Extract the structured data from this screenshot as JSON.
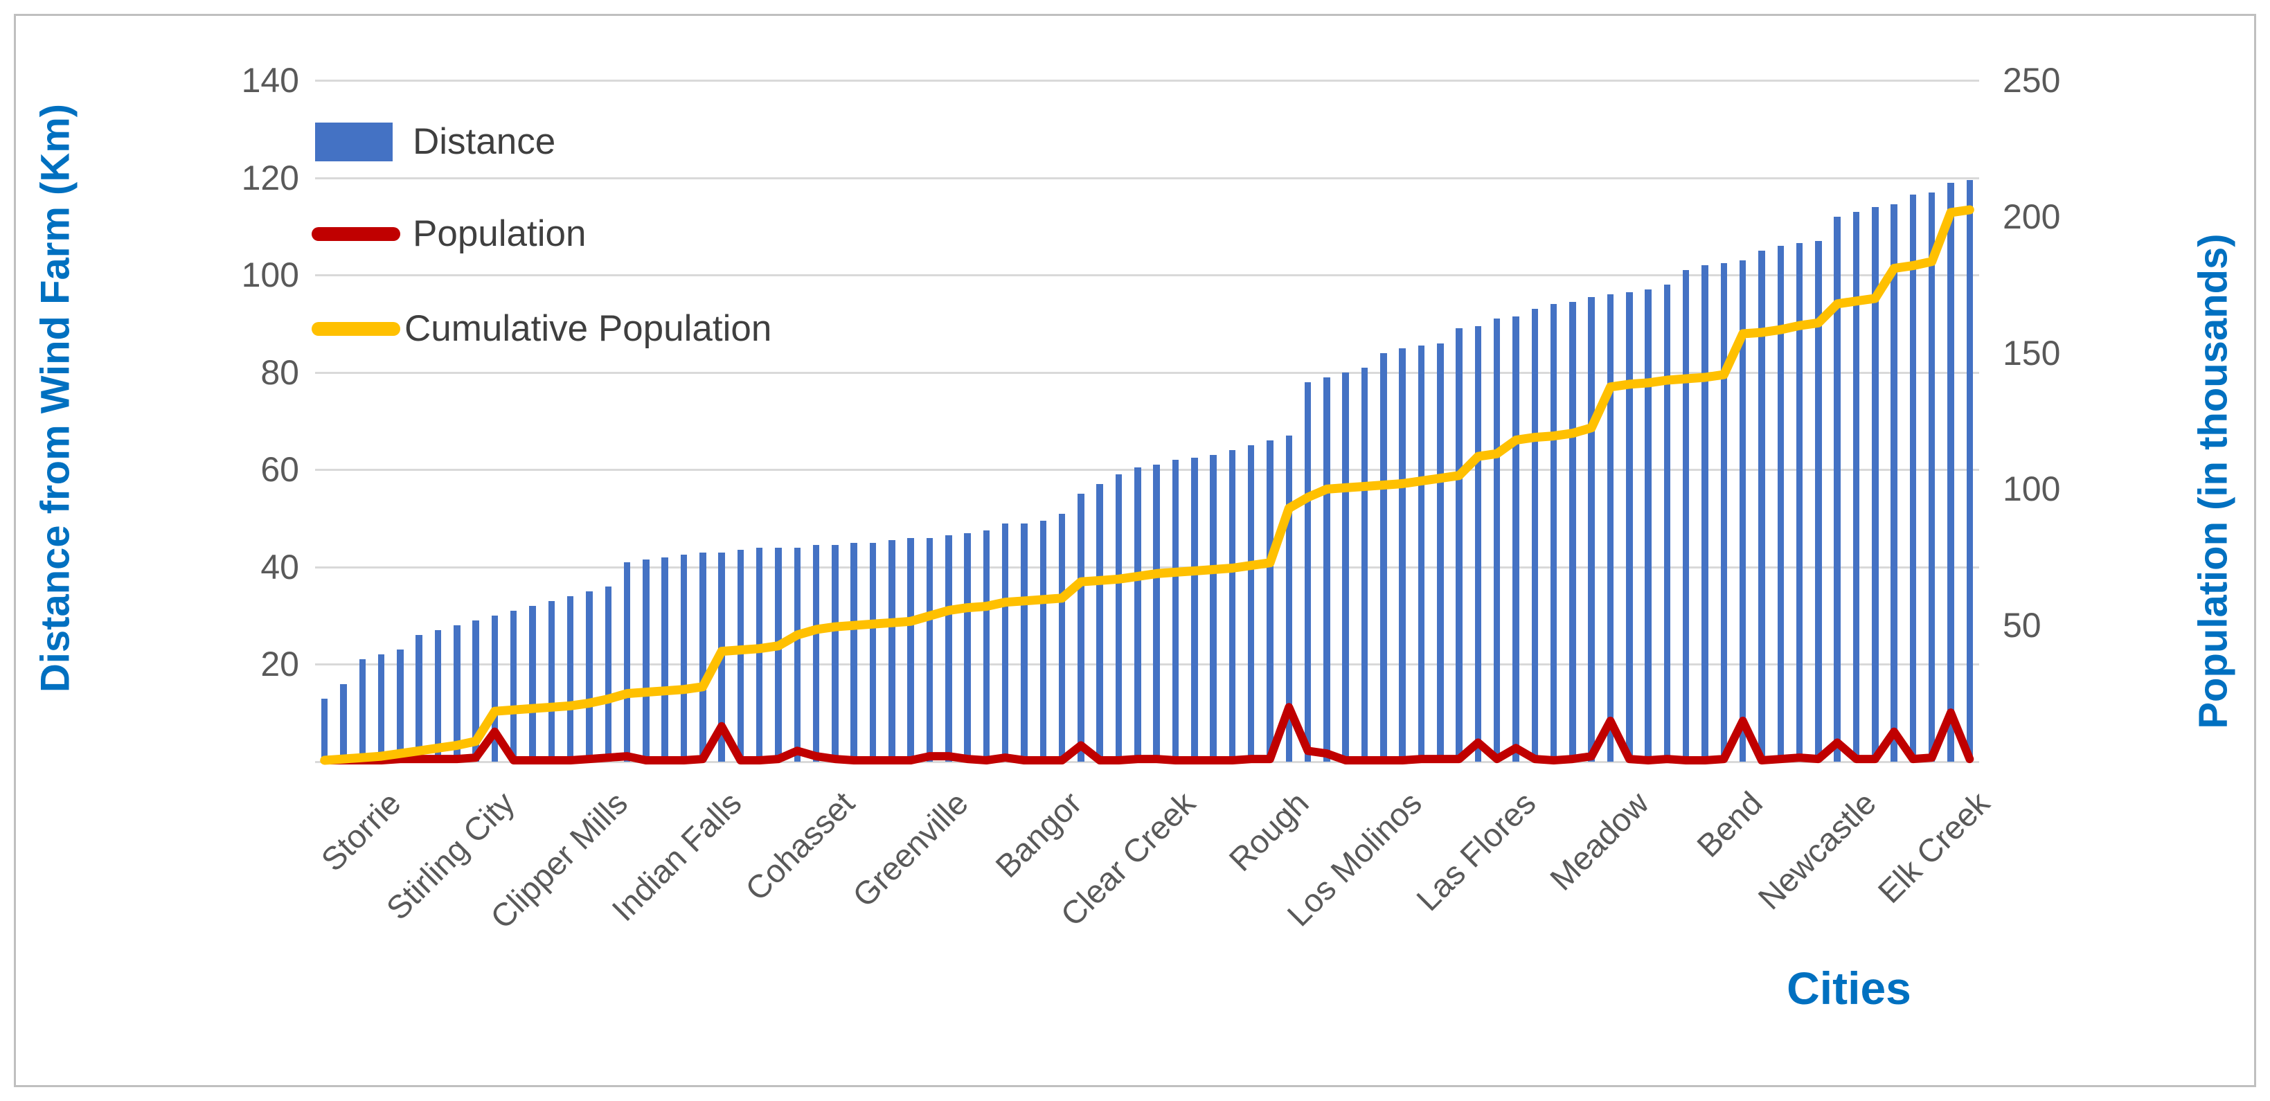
{
  "chart_data": {
    "type": "combo",
    "n_categories": 88,
    "grid": {
      "horizontal": true,
      "color": "#d9d9d9"
    },
    "x_axis": {
      "title": "Cities",
      "visible_labels": [
        "Storrie",
        "Stirling City",
        "Clipper Mills",
        "Indian Falls",
        "Cohasset",
        "Greenville",
        "Bangor",
        "Clear Creek",
        "Rough",
        "Los Molinos",
        "Las Flores",
        "Meadow",
        "Bend",
        "Newcastle",
        "Elk Creek"
      ],
      "visible_label_positions": [
        4,
        10,
        16,
        22,
        28,
        34,
        40,
        46,
        52,
        58,
        64,
        70,
        76,
        82,
        88
      ],
      "label_rotation_deg": 45
    },
    "y_axis_left": {
      "title": "Distance from Wind Farm (Km)",
      "min": 0,
      "max": 140,
      "tick_interval": 20,
      "ticks": [
        20,
        40,
        60,
        80,
        100,
        120,
        140
      ],
      "title_color": "#0070C0",
      "tick_color": "#595959"
    },
    "y_axis_right": {
      "title": "Population (in thousands)",
      "min": 0,
      "max": 250,
      "tick_interval": 50,
      "ticks": [
        50,
        100,
        150,
        200,
        250
      ],
      "title_color": "#0070C0",
      "tick_color": "#595959"
    },
    "legend": {
      "position": "top-left",
      "entries": [
        {
          "label": "Distance",
          "color": "#4472C4",
          "swatch": "bar"
        },
        {
          "label": "Population",
          "color": "#C00000",
          "swatch": "line"
        },
        {
          "label": "Cumulative Population",
          "color": "#FFC000",
          "swatch": "line"
        }
      ]
    },
    "series": [
      {
        "name": "Distance",
        "type": "bar",
        "axis": "left",
        "color": "#4472C4",
        "values": [
          13,
          16,
          21,
          22,
          23,
          26,
          27,
          28,
          29,
          30,
          31,
          32,
          33,
          34,
          35,
          36,
          41,
          41.5,
          42,
          42.5,
          43,
          43,
          43.5,
          44,
          44,
          44,
          44.5,
          44.5,
          45,
          45,
          45.5,
          46,
          46,
          46.5,
          47,
          47.5,
          49,
          49,
          49.5,
          51,
          55,
          57,
          59,
          60.5,
          61,
          62,
          62.5,
          63,
          64,
          65,
          66,
          67,
          78,
          79,
          80,
          81,
          84,
          85,
          85.5,
          86,
          89,
          89.5,
          91,
          91.5,
          93,
          94,
          94.5,
          95.5,
          96,
          96.5,
          97,
          98,
          101,
          102,
          102.5,
          103,
          105,
          106,
          106.5,
          107,
          112,
          113,
          114,
          114.5,
          116.5,
          117,
          119,
          119.5
        ]
      },
      {
        "name": "Population",
        "type": "line",
        "axis": "right",
        "color": "#C00000",
        "values": [
          0.5,
          0.5,
          0.5,
          0.5,
          1,
          1,
          1,
          1,
          1.5,
          11,
          0.5,
          0.5,
          0.5,
          0.5,
          1,
          1.5,
          2,
          0.5,
          0.5,
          0.5,
          1,
          13,
          0.5,
          0.5,
          1,
          4,
          2,
          1,
          0.5,
          0.5,
          0.5,
          0.5,
          2,
          2,
          1,
          0.5,
          1.5,
          0.5,
          0.5,
          0.5,
          6,
          0.5,
          0.5,
          1,
          1,
          0.5,
          0.5,
          0.5,
          0.5,
          1,
          1,
          20,
          4,
          3,
          0.5,
          0.5,
          0.5,
          0.5,
          1,
          1,
          1,
          7,
          1,
          5,
          1,
          0.5,
          1,
          2,
          15,
          1,
          0.5,
          1,
          0.5,
          0.5,
          1,
          15,
          0.5,
          1,
          1.5,
          1,
          7,
          1,
          1,
          11,
          1,
          1.5,
          18,
          1
        ]
      },
      {
        "name": "Cumulative Population",
        "type": "line",
        "axis": "right",
        "color": "#FFC000",
        "values": [
          0.5,
          1,
          1.5,
          2,
          3,
          4,
          5,
          6,
          7.5,
          18.5,
          19,
          19.5,
          20,
          20.5,
          21.5,
          23,
          25,
          25.5,
          26,
          26.5,
          27.5,
          40.5,
          41,
          41.5,
          42.5,
          46.5,
          48.5,
          49.5,
          50,
          50.5,
          51,
          51.5,
          53.5,
          55.5,
          56.5,
          57,
          58.5,
          59,
          59.5,
          60,
          66,
          66.5,
          67,
          68,
          69,
          69.5,
          70,
          70.5,
          71,
          72,
          73,
          93,
          97,
          100,
          100.5,
          101,
          101.5,
          102,
          103,
          104,
          105,
          112,
          113,
          118,
          119,
          119.5,
          120.5,
          122.5,
          137.5,
          138.5,
          139,
          140,
          140.5,
          141,
          142,
          157,
          157.5,
          158.5,
          160,
          161,
          168,
          169,
          170,
          181,
          182,
          183.5,
          201.5,
          202.5
        ]
      }
    ]
  }
}
